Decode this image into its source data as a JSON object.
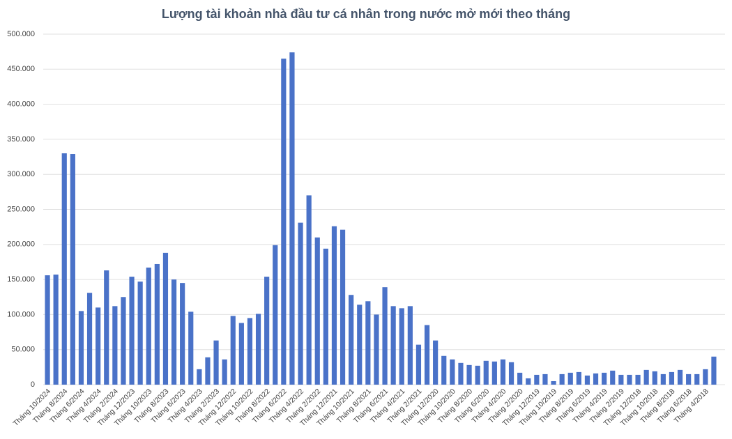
{
  "chart_data": {
    "type": "bar",
    "title": "Lượng tài khoản nhà đầu tư cá nhân trong nước mở mới theo tháng",
    "categories": [
      "Tháng 10/2024",
      null,
      "Tháng 8/2024",
      null,
      "Tháng 6/2024",
      null,
      "Tháng 4/2024",
      null,
      "Tháng 2/2024",
      null,
      "Tháng 12/2023",
      null,
      "Tháng 10/2023",
      null,
      "Tháng 8/2023",
      null,
      "Tháng 6/2023",
      null,
      "Tháng 4/2023",
      null,
      "Tháng 2/2023",
      null,
      "Tháng 12/2022",
      null,
      "Tháng 10/2022",
      null,
      "Tháng 8/2022",
      null,
      "Tháng 6/2022",
      null,
      "Tháng 4/2022",
      null,
      "Tháng 2/2022",
      null,
      "Tháng 12/2021",
      null,
      "Tháng 10/2021",
      null,
      "Tháng 8/2021",
      null,
      "Tháng 6/2021",
      null,
      "Tháng 4/2021",
      null,
      "Tháng 2/2021",
      null,
      "Tháng 12/2020",
      null,
      "Tháng 10/2020",
      null,
      "Tháng 8/2020",
      null,
      "Tháng 6/2020",
      null,
      "Tháng 4/2020",
      null,
      "Tháng 2/2020",
      null,
      "Tháng 12/2019",
      null,
      "Tháng 10/2019",
      null,
      "Tháng 8/2019",
      null,
      "Tháng 6/2019",
      null,
      "Tháng 4/2019",
      null,
      "Tháng 2/2019",
      null,
      "Tháng 12/2018",
      null,
      "Tháng 10/2018",
      null,
      "Tháng 8/2018",
      null,
      "Tháng 6/2018",
      null,
      "Tháng 4/2018",
      null
    ],
    "values": [
      156000,
      157000,
      330000,
      329000,
      105000,
      131000,
      110000,
      163000,
      112000,
      125000,
      154000,
      147000,
      167000,
      172000,
      188000,
      150000,
      145000,
      104000,
      22000,
      39000,
      63000,
      36000,
      98000,
      88000,
      95000,
      101000,
      154000,
      199000,
      465000,
      474000,
      231000,
      270000,
      210000,
      194000,
      226000,
      221000,
      128000,
      114000,
      119000,
      100000,
      139000,
      112000,
      109000,
      112000,
      57000,
      85000,
      63000,
      41000,
      36000,
      31000,
      28000,
      27000,
      34000,
      33000,
      36000,
      32000,
      17000,
      9000,
      14000,
      15000,
      5000,
      15000,
      17000,
      18000,
      13000,
      16000,
      17000,
      20000,
      14000,
      14000,
      14000,
      21000,
      19000,
      15000,
      18000,
      21000,
      15000,
      15000,
      22000,
      40000
    ],
    "color": "#4a72c8",
    "ylim": [
      0,
      500000
    ],
    "yticks": [
      0,
      {
        "value": 50000,
        "label": "50.000"
      },
      {
        "value": 100000,
        "label": "100.000"
      },
      {
        "value": 150000,
        "label": "150.000"
      },
      {
        "value": 200000,
        "label": "200.000"
      },
      {
        "value": 250000,
        "label": "250.000"
      },
      {
        "value": 300000,
        "label": "300.000"
      },
      {
        "value": 350000,
        "label": "350.000"
      },
      {
        "value": 400000,
        "label": "400.000"
      },
      {
        "value": 450000,
        "label": "450.000"
      },
      {
        "value": 500000,
        "label": "500.000"
      }
    ],
    "grid": true
  }
}
